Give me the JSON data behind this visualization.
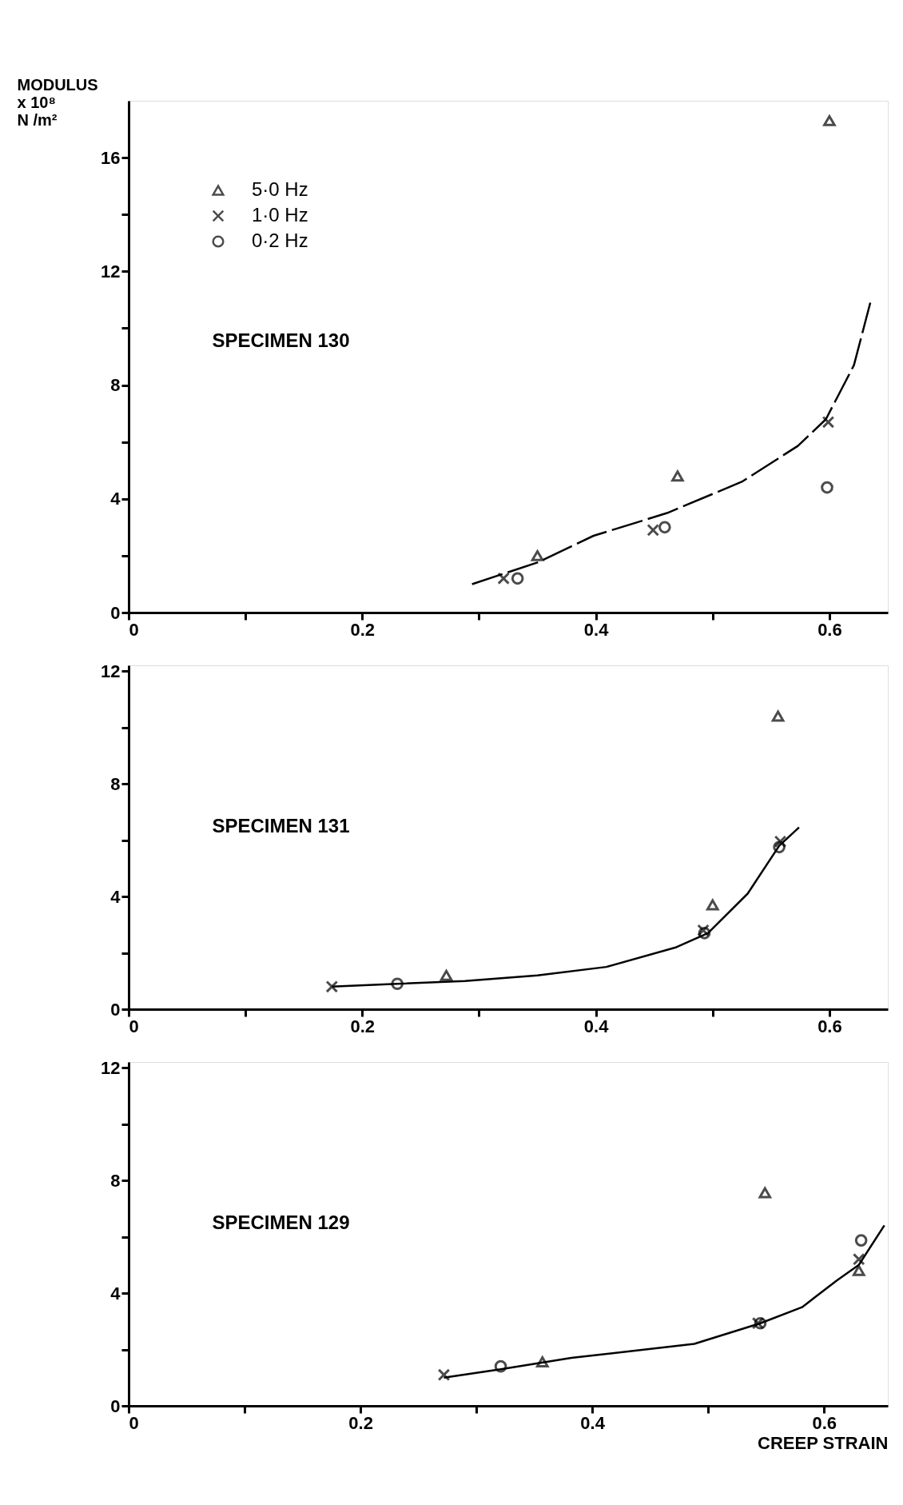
{
  "chart_data": [
    {
      "type": "scatter",
      "ylabel": "MODULUS\nx 10⁸\nN /m²",
      "annotations": [
        "SPECIMEN  130"
      ],
      "legend": "top left",
      "xlim": [
        0,
        0.65
      ],
      "xticks": [
        0,
        {
          "value": 0.1,
          "label": null
        },
        0.2,
        {
          "value": 0.3,
          "label": null
        },
        0.4,
        {
          "value": 0.5,
          "label": null
        },
        0.6
      ],
      "ylim": [
        0,
        18
      ],
      "yticks": [
        0,
        {
          "value": 2,
          "label": null
        },
        4,
        {
          "value": 6,
          "label": null
        },
        8,
        {
          "value": 10,
          "label": null
        },
        12,
        {
          "value": 14,
          "label": null
        },
        16
      ],
      "series": [
        {
          "name": "5·0  Hz",
          "type": "scatter",
          "marker": "triangle",
          "color": "#000000",
          "x": [
            0.35,
            0.47,
            0.6
          ],
          "values": [
            2.0,
            4.8,
            17.3
          ]
        },
        {
          "name": "1·0  Hz",
          "type": "scatter",
          "marker": "cross",
          "color": "#000000",
          "x": [
            0.321,
            0.449,
            0.599
          ],
          "values": [
            1.2,
            2.9,
            6.7
          ]
        },
        {
          "name": "0·2  Hz",
          "type": "scatter",
          "marker": "circle",
          "color": "#000000",
          "x": [
            0.333,
            0.459,
            0.598
          ],
          "values": [
            1.2,
            3.0,
            4.4
          ]
        },
        {
          "type": "line",
          "line_style": "dashed",
          "color": "#000000",
          "x": [
            0.294,
            0.35,
            0.398,
            0.461,
            0.525,
            0.573,
            0.597,
            0.621,
            0.635
          ],
          "values": [
            1.0,
            1.76,
            2.7,
            3.5,
            4.6,
            5.86,
            6.8,
            8.7,
            10.9
          ]
        }
      ]
    },
    {
      "type": "scatter",
      "annotations": [
        "SPECIMEN  131"
      ],
      "xlim": [
        0,
        0.65
      ],
      "xticks": [
        0,
        {
          "value": 0.1,
          "label": null
        },
        0.2,
        {
          "value": 0.3,
          "label": null
        },
        0.4,
        {
          "value": 0.5,
          "label": null
        },
        0.6
      ],
      "ylim": [
        0,
        12.2
      ],
      "yticks": [
        0,
        {
          "value": 2,
          "label": null
        },
        4,
        {
          "value": 6,
          "label": null
        },
        8,
        {
          "value": 10,
          "label": null
        },
        12
      ],
      "series": [
        {
          "type": "scatter",
          "marker": "triangle",
          "color": "#000000",
          "x": [
            0.272,
            0.5,
            0.556
          ],
          "values": [
            1.2,
            3.7,
            10.4
          ]
        },
        {
          "type": "scatter",
          "marker": "cross",
          "color": "#000000",
          "x": [
            0.174,
            0.492,
            0.558
          ],
          "values": [
            0.8,
            2.8,
            5.95
          ]
        },
        {
          "type": "scatter",
          "marker": "circle",
          "color": "#000000",
          "x": [
            0.23,
            0.493,
            0.557
          ],
          "values": [
            0.9,
            2.7,
            5.75
          ]
        },
        {
          "type": "line",
          "line_style": "solid",
          "color": "#000000",
          "x": [
            0.174,
            0.23,
            0.288,
            0.35,
            0.409,
            0.469,
            0.496,
            0.53,
            0.557,
            0.574
          ],
          "values": [
            0.8,
            0.9,
            1.0,
            1.2,
            1.5,
            2.2,
            2.7,
            4.1,
            5.8,
            6.45
          ]
        }
      ]
    },
    {
      "type": "scatter",
      "annotations": [
        "SPECIMEN  129"
      ],
      "xlabel": "CREEP  STRAIN",
      "xlim": [
        0,
        0.655
      ],
      "xticks": [
        0,
        {
          "value": 0.1,
          "label": null
        },
        0.2,
        {
          "value": 0.3,
          "label": null
        },
        0.4,
        {
          "value": 0.5,
          "label": null
        },
        0.6
      ],
      "ylim": [
        0,
        12.2
      ],
      "yticks": [
        0,
        {
          "value": 2,
          "label": null
        },
        4,
        {
          "value": 6,
          "label": null
        },
        8,
        {
          "value": 10,
          "label": null
        },
        12
      ],
      "series": [
        {
          "type": "scatter",
          "marker": "triangle",
          "color": "#000000",
          "x": [
            0.357,
            0.549,
            0.63
          ],
          "values": [
            1.56,
            7.56,
            4.8
          ]
        },
        {
          "type": "scatter",
          "marker": "cross",
          "color": "#000000",
          "x": [
            0.272,
            0.543,
            0.63
          ],
          "values": [
            1.1,
            2.93,
            5.2
          ]
        },
        {
          "type": "scatter",
          "marker": "circle",
          "color": "#000000",
          "x": [
            0.321,
            0.545,
            0.632
          ],
          "values": [
            1.4,
            2.93,
            5.87
          ]
        },
        {
          "type": "line",
          "line_style": "solid",
          "color": "#000000",
          "x": [
            0.272,
            0.321,
            0.382,
            0.488,
            0.545,
            0.581,
            0.611,
            0.63,
            0.652
          ],
          "values": [
            1.0,
            1.3,
            1.7,
            2.2,
            2.93,
            3.5,
            4.45,
            5.0,
            6.4
          ]
        }
      ]
    }
  ]
}
